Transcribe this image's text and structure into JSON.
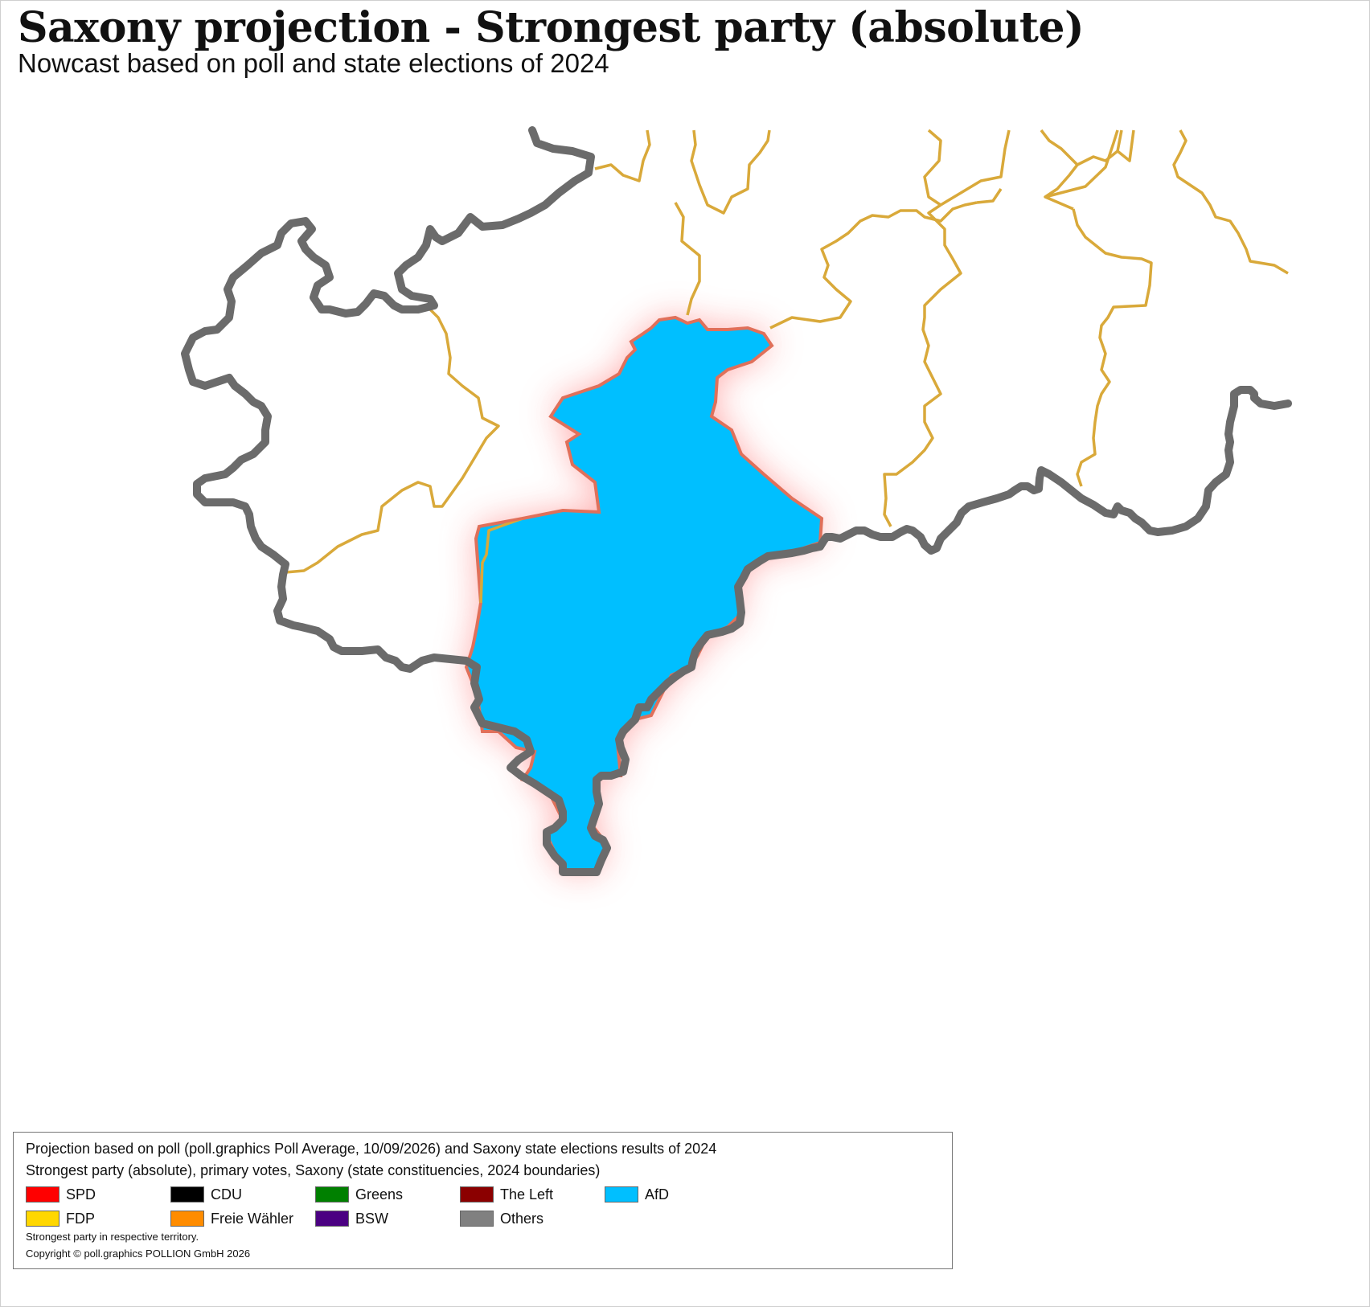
{
  "title": "Saxony projection - Strongest party (absolute)",
  "subtitle": "Nowcast based on poll and state elections of 2024",
  "map": {
    "highlighted_constituency_party": "AfD",
    "colors": {
      "afd_fill": "#00BFFF",
      "highlight_glow": "#ff6a6a",
      "state_border": "#6b6b6b",
      "constituency_border": "#d9a93a",
      "highlight_outline": "#e0705a"
    }
  },
  "legend": {
    "line1": "Projection based on poll (poll.graphics Poll Average, 10/09/2026) and Saxony state elections results of 2024",
    "line2": "Strongest party (absolute), primary votes, Saxony (state constituencies, 2024 boundaries)",
    "items": [
      {
        "label": "SPD",
        "color": "#FF0000"
      },
      {
        "label": "CDU",
        "color": "#000000"
      },
      {
        "label": "Greens",
        "color": "#008000"
      },
      {
        "label": "The Left",
        "color": "#8B0000"
      },
      {
        "label": "AfD",
        "color": "#00BFFF"
      },
      {
        "label": "FDP",
        "color": "#FFD700"
      },
      {
        "label": "Freie Wähler",
        "color": "#FF8C00"
      },
      {
        "label": "BSW",
        "color": "#4B0082"
      },
      {
        "label": "Others",
        "color": "#808080"
      }
    ],
    "note1": "Strongest party in respective territory.",
    "note2": "Copyright © poll.graphics POLLION GmbH 2026"
  }
}
